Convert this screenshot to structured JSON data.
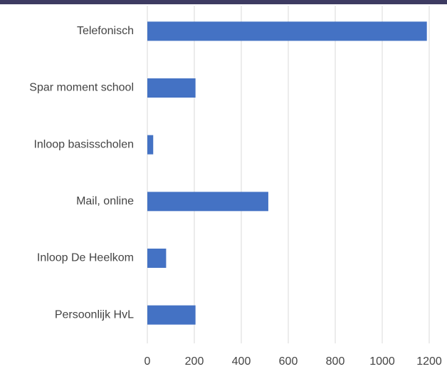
{
  "chart_data": {
    "type": "bar",
    "orientation": "horizontal",
    "categories": [
      "Telefonisch",
      "Spar moment school",
      "Inloop basisscholen",
      "Mail, online",
      "Inloop De Heelkom",
      "Persoonlijk HvL"
    ],
    "values": [
      1190,
      205,
      25,
      515,
      80,
      205
    ],
    "color": "#4472c4",
    "xlim": [
      0,
      1200
    ],
    "xticks": [
      0,
      200,
      400,
      600,
      800,
      1000,
      1200
    ],
    "grid": true
  }
}
